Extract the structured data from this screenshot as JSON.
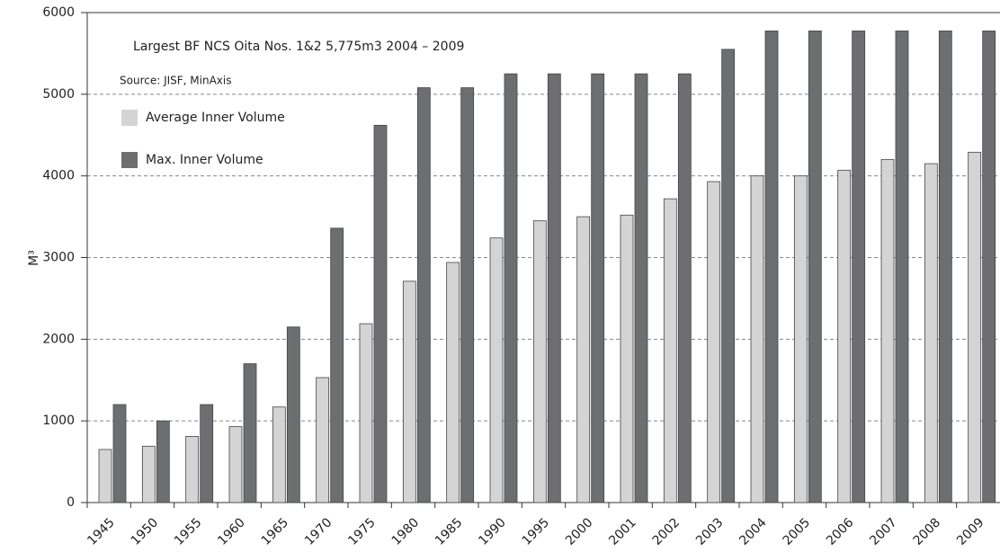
{
  "chart_data": {
    "type": "bar",
    "title": "Largest BF NCS Oita Nos. 1&2 5,775m3 2004 – 2009",
    "subtitle": "Source: JISF, MinAxis",
    "y_label": "M³",
    "categories": [
      "1945",
      "1950",
      "1955",
      "1960",
      "1965",
      "1970",
      "1975",
      "1980",
      "1985",
      "1990",
      "1995",
      "2000",
      "2001",
      "2002",
      "2003",
      "2004",
      "2005",
      "2006",
      "2007",
      "2008",
      "2009"
    ],
    "series": [
      {
        "name": "Average Inner Volume",
        "color": "#d4d4d4",
        "values": [
          650,
          690,
          810,
          930,
          1170,
          1530,
          2190,
          2710,
          2940,
          3240,
          3450,
          3500,
          3520,
          3720,
          3930,
          4000,
          4000,
          4070,
          4200,
          4150,
          4290
        ]
      },
      {
        "name": "Max. Inner Volume",
        "color": "#6d6e70",
        "values": [
          1200,
          1000,
          1200,
          1700,
          2150,
          3360,
          4620,
          5080,
          5080,
          5250,
          5250,
          5250,
          5250,
          5250,
          5550,
          5775,
          5775,
          5775,
          5775,
          5775,
          5775
        ]
      }
    ],
    "ylim": [
      0,
      6000
    ],
    "yticks": [
      0,
      1000,
      2000,
      3000,
      4000,
      5000,
      6000
    ],
    "grid": true,
    "legend": "upper left"
  }
}
